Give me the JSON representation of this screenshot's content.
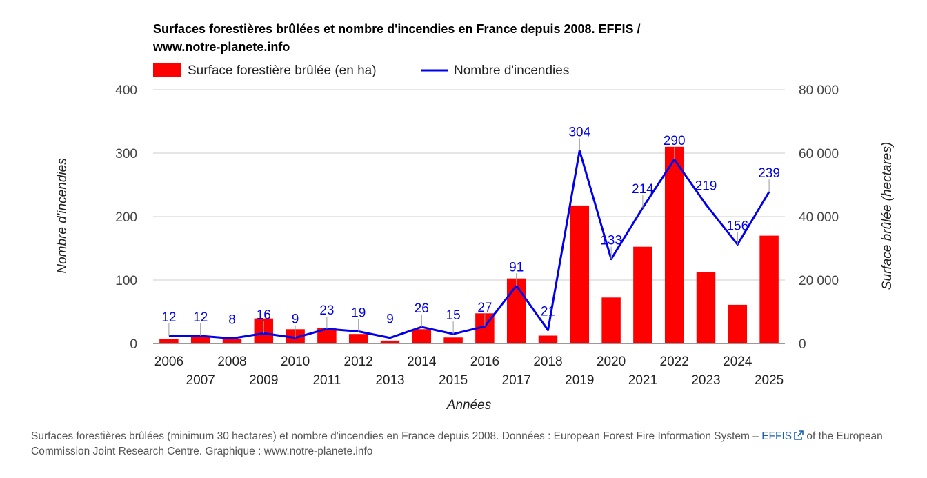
{
  "chart_data": {
    "type": "bar+line",
    "title": "Surfaces forestières brûlées et nombre d'incendies en France depuis 2008. EFFIS /",
    "title_line2": "www.notre-planete.info",
    "xlabel": "Années",
    "ylabel_left": "Nombre d'incendies",
    "ylabel_right": "Surface brûlée (hectares)",
    "categories": [
      "2006",
      "2007",
      "2008",
      "2009",
      "2010",
      "2011",
      "2012",
      "2013",
      "2014",
      "2015",
      "2016",
      "2017",
      "2018",
      "2019",
      "2020",
      "2021",
      "2022",
      "2023",
      "2024",
      "2025"
    ],
    "y_left": {
      "min": 0,
      "max": 400,
      "ticks": [
        "0",
        "100",
        "200",
        "300",
        "400"
      ]
    },
    "y_right": {
      "min": 0,
      "max": 80000,
      "ticks": [
        "0",
        "20 000",
        "40 000",
        "60 000",
        "80 000"
      ]
    },
    "grid": true,
    "legend_position": "top-left",
    "series": [
      {
        "name": "Surface forestière brûlée (en ha)",
        "type": "bar",
        "axis": "right",
        "color": "#ff0000",
        "values": [
          1500,
          2000,
          1500,
          7900,
          4500,
          5000,
          3000,
          900,
          4500,
          1900,
          9500,
          20500,
          2500,
          43500,
          14500,
          30500,
          62000,
          22500,
          12200,
          34000
        ]
      },
      {
        "name": "Nombre d'incendies",
        "type": "line",
        "axis": "left",
        "color": "#0000ee",
        "values": [
          12,
          12,
          8,
          16,
          9,
          23,
          19,
          9,
          26,
          15,
          27,
          91,
          21,
          304,
          133,
          214,
          290,
          219,
          156,
          239
        ],
        "labels": [
          "12",
          "12",
          "8",
          "16",
          "9",
          "23",
          "19",
          "9",
          "26",
          "15",
          "27",
          "91",
          "21",
          "304",
          "133",
          "214",
          "290",
          "219",
          "156",
          "239"
        ]
      }
    ]
  },
  "caption": {
    "text_before": "Surfaces forestières brûlées (minimum 30 hectares) et nombre d'incendies en France depuis 2008. Données : European Forest Fire Information System – ",
    "link": "EFFIS",
    "text_after": " of the European Commission Joint Research Centre. Graphique : www.notre-planete.info"
  }
}
